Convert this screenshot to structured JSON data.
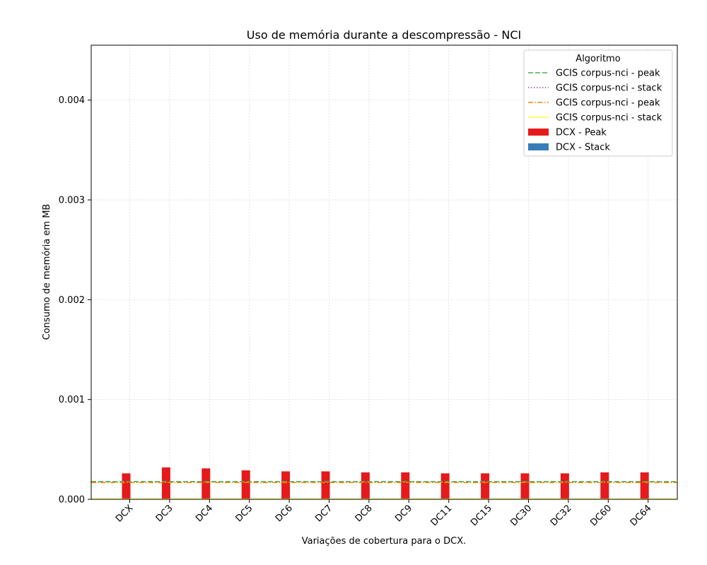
{
  "chart_data": {
    "type": "bar",
    "title": "Uso de memória durante a descompressão -  NCI",
    "xlabel": "Variações de cobertura para o DCX.",
    "ylabel": "Consumo de memória em MB",
    "ylim": [
      0,
      0.00455
    ],
    "y_ticks": [
      "0.000",
      "0.001",
      "0.002",
      "0.003",
      "0.004"
    ],
    "y_tick_values": [
      0,
      0.001,
      0.002,
      0.003,
      0.004
    ],
    "grid": true,
    "legend_position": "top-right",
    "legend_title": "Algoritmo",
    "categories": [
      "DCX",
      "DC3",
      "DC4",
      "DC5",
      "DC6",
      "DC7",
      "DC8",
      "DC9",
      "DC11",
      "DC15",
      "DC30",
      "DC32",
      "DC60",
      "DC64"
    ],
    "series": [
      {
        "name": "DCX - Peak",
        "kind": "bar",
        "color": "#e41a1c",
        "values": [
          0.00026,
          0.00032,
          0.00031,
          0.00029,
          0.00028,
          0.00028,
          0.00027,
          0.00027,
          0.00026,
          0.00026,
          0.00026,
          0.00026,
          0.00027,
          0.00027
        ]
      },
      {
        "name": "DCX - Stack",
        "kind": "bar",
        "color": "#377eb8",
        "values": [
          5e-06,
          5e-06,
          5e-06,
          5e-06,
          5e-06,
          5e-06,
          5e-06,
          5e-06,
          5e-06,
          5e-06,
          5e-06,
          5e-06,
          5e-06,
          5e-06
        ]
      }
    ],
    "reference_lines": [
      {
        "name": "GCIS corpus-nci - peak",
        "value": 0.000177,
        "color": "#4daf4a",
        "dash": "dashed"
      },
      {
        "name": "GCIS corpus-nci - stack",
        "value": 2e-06,
        "color": "#984ea3",
        "dash": "dotted"
      },
      {
        "name": "GCIS corpus-nci - peak",
        "value": 0.000168,
        "color": "#ff7f00",
        "dash": "dashdot"
      },
      {
        "name": "GCIS corpus-nci - stack",
        "value": 2e-06,
        "color": "#ffff33",
        "dash": "solid"
      }
    ]
  }
}
